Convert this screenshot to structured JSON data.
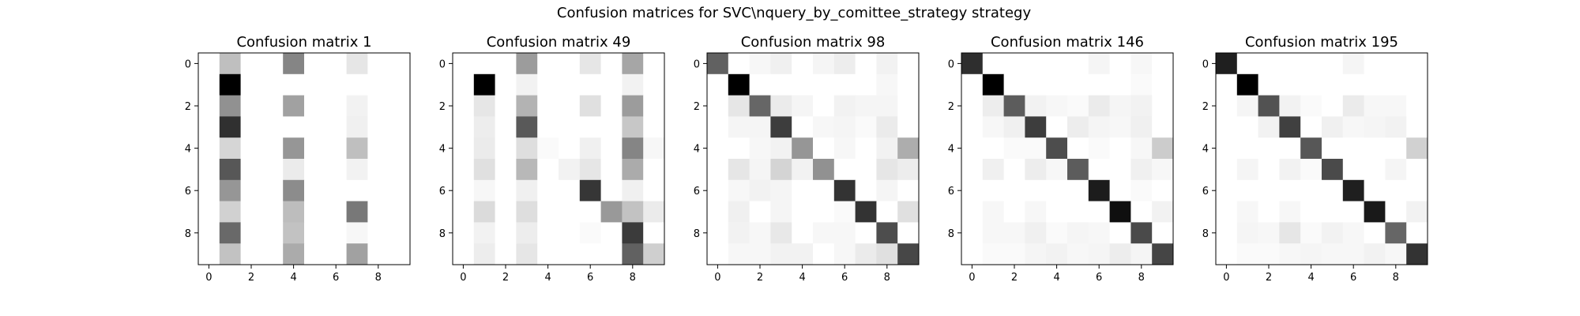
{
  "figure": {
    "suptitle": "Confusion matrices for SVC\\nquery_by_comittee_strategy strategy"
  },
  "colormap": "gray_r",
  "chart_data": [
    {
      "type": "heatmap",
      "title": "Confusion matrix 1",
      "xlabel": "",
      "ylabel": "",
      "xticks": [
        0,
        2,
        4,
        6,
        8
      ],
      "yticks": [
        0,
        2,
        4,
        6,
        8
      ],
      "matrix": [
        [
          0,
          0.25,
          0,
          0,
          0.48,
          0,
          0,
          0.1,
          0,
          0
        ],
        [
          0,
          1.0,
          0,
          0,
          0,
          0,
          0,
          0,
          0,
          0
        ],
        [
          0,
          0.43,
          0,
          0,
          0.37,
          0,
          0,
          0.05,
          0,
          0
        ],
        [
          0,
          0.81,
          0,
          0,
          0,
          0,
          0,
          0.06,
          0,
          0
        ],
        [
          0,
          0.16,
          0,
          0,
          0.41,
          0,
          0,
          0.25,
          0,
          0
        ],
        [
          0,
          0.66,
          0,
          0,
          0.08,
          0,
          0,
          0.05,
          0,
          0
        ],
        [
          0,
          0.41,
          0,
          0,
          0.45,
          0,
          0,
          0,
          0,
          0
        ],
        [
          0,
          0.18,
          0,
          0,
          0.26,
          0,
          0,
          0.53,
          0,
          0
        ],
        [
          0,
          0.59,
          0,
          0,
          0.24,
          0,
          0,
          0.03,
          0,
          0
        ],
        [
          0,
          0.24,
          0,
          0,
          0.33,
          0,
          0,
          0.37,
          0,
          0
        ]
      ]
    },
    {
      "type": "heatmap",
      "title": "Confusion matrix 49",
      "xlabel": "",
      "ylabel": "",
      "xticks": [
        0,
        2,
        4,
        6,
        8
      ],
      "yticks": [
        0,
        2,
        4,
        6,
        8
      ],
      "matrix": [
        [
          0,
          0,
          0,
          0.39,
          0,
          0,
          0.1,
          0,
          0.35,
          0
        ],
        [
          0,
          1.0,
          0,
          0.05,
          0,
          0,
          0,
          0,
          0.05,
          0
        ],
        [
          0,
          0.1,
          0,
          0.3,
          0,
          0,
          0.12,
          0,
          0.39,
          0
        ],
        [
          0,
          0.07,
          0,
          0.65,
          0,
          0,
          0,
          0,
          0.22,
          0
        ],
        [
          0,
          0.08,
          0,
          0.13,
          0.02,
          0,
          0.06,
          0,
          0.48,
          0.03
        ],
        [
          0,
          0.12,
          0,
          0.28,
          0,
          0.05,
          0.1,
          0,
          0.33,
          0
        ],
        [
          0,
          0.03,
          0,
          0.06,
          0,
          0,
          0.79,
          0,
          0.06,
          0
        ],
        [
          0,
          0.14,
          0,
          0.13,
          0,
          0,
          0,
          0.4,
          0.24,
          0.08
        ],
        [
          0,
          0.05,
          0,
          0.07,
          0,
          0,
          0.02,
          0,
          0.77,
          0
        ],
        [
          0,
          0.07,
          0,
          0.1,
          0,
          0,
          0,
          0,
          0.62,
          0.19
        ]
      ]
    },
    {
      "type": "heatmap",
      "title": "Confusion matrix 98",
      "xlabel": "",
      "ylabel": "",
      "xticks": [
        0,
        2,
        4,
        6,
        8
      ],
      "yticks": [
        0,
        2,
        4,
        6,
        8
      ],
      "matrix": [
        [
          0.62,
          0,
          0.03,
          0.06,
          0,
          0.04,
          0.07,
          0,
          0.05,
          0
        ],
        [
          0,
          1.0,
          0,
          0,
          0,
          0,
          0,
          0,
          0.03,
          0
        ],
        [
          0,
          0.1,
          0.6,
          0.08,
          0.04,
          0,
          0.05,
          0.04,
          0.04,
          0
        ],
        [
          0,
          0.04,
          0.04,
          0.76,
          0,
          0.03,
          0.04,
          0.02,
          0.08,
          0
        ],
        [
          0,
          0,
          0.03,
          0.05,
          0.41,
          0,
          0.03,
          0,
          0.05,
          0.32
        ],
        [
          0,
          0.1,
          0.04,
          0.17,
          0.05,
          0.43,
          0,
          0,
          0.1,
          0.07
        ],
        [
          0,
          0.03,
          0.05,
          0.04,
          0,
          0,
          0.8,
          0,
          0.04,
          0
        ],
        [
          0,
          0.06,
          0,
          0.04,
          0,
          0,
          0.02,
          0.8,
          0,
          0.12
        ],
        [
          0,
          0.05,
          0.03,
          0.09,
          0,
          0.03,
          0.03,
          0,
          0.7,
          0
        ],
        [
          0,
          0.03,
          0.03,
          0.05,
          0.05,
          0,
          0.03,
          0.08,
          0.12,
          0.72
        ]
      ]
    },
    {
      "type": "heatmap",
      "title": "Confusion matrix 146",
      "xlabel": "",
      "ylabel": "",
      "xticks": [
        0,
        2,
        4,
        6,
        8
      ],
      "yticks": [
        0,
        2,
        4,
        6,
        8
      ],
      "matrix": [
        [
          0.82,
          0,
          0,
          0,
          0,
          0,
          0.04,
          0,
          0.03,
          0
        ],
        [
          0,
          1.0,
          0,
          0,
          0,
          0,
          0,
          0,
          0.02,
          0
        ],
        [
          0,
          0.07,
          0.64,
          0.05,
          0.03,
          0.02,
          0.08,
          0.04,
          0.05,
          0
        ],
        [
          0,
          0.03,
          0.06,
          0.76,
          0,
          0.07,
          0.04,
          0.03,
          0.06,
          0
        ],
        [
          0,
          0,
          0.02,
          0.02,
          0.7,
          0,
          0.02,
          0,
          0.03,
          0.2
        ],
        [
          0,
          0.06,
          0,
          0.07,
          0.03,
          0.64,
          0,
          0,
          0.06,
          0.03
        ],
        [
          0,
          0,
          0,
          0,
          0,
          0,
          0.89,
          0,
          0.02,
          0
        ],
        [
          0,
          0.03,
          0,
          0.03,
          0,
          0,
          0,
          0.94,
          0,
          0.05
        ],
        [
          0,
          0.03,
          0.03,
          0.06,
          0.02,
          0.04,
          0.03,
          0,
          0.71,
          0
        ],
        [
          0,
          0.02,
          0.02,
          0.04,
          0.05,
          0.03,
          0.04,
          0.07,
          0.04,
          0.73
        ]
      ]
    },
    {
      "type": "heatmap",
      "title": "Confusion matrix 195",
      "xlabel": "",
      "ylabel": "",
      "xticks": [
        0,
        2,
        4,
        6,
        8
      ],
      "yticks": [
        0,
        2,
        4,
        6,
        8
      ],
      "matrix": [
        [
          0.88,
          0,
          0,
          0,
          0,
          0,
          0.04,
          0,
          0,
          0
        ],
        [
          0,
          1.0,
          0,
          0,
          0,
          0,
          0,
          0,
          0,
          0
        ],
        [
          0,
          0.04,
          0.68,
          0.05,
          0.02,
          0,
          0.08,
          0.03,
          0.03,
          0
        ],
        [
          0,
          0,
          0.05,
          0.75,
          0,
          0.06,
          0.03,
          0.04,
          0.05,
          0
        ],
        [
          0,
          0,
          0,
          0,
          0.66,
          0,
          0,
          0,
          0,
          0.18
        ],
        [
          0,
          0.04,
          0,
          0.05,
          0.02,
          0.71,
          0,
          0,
          0.04,
          0
        ],
        [
          0,
          0,
          0,
          0,
          0,
          0,
          0.88,
          0,
          0,
          0
        ],
        [
          0,
          0.03,
          0,
          0.03,
          0,
          0,
          0,
          0.9,
          0,
          0.05
        ],
        [
          0,
          0.04,
          0.03,
          0.1,
          0.02,
          0.05,
          0.03,
          0,
          0.6,
          0
        ],
        [
          0,
          0.02,
          0.02,
          0.03,
          0.04,
          0.03,
          0.03,
          0.05,
          0.03,
          0.8
        ]
      ]
    }
  ]
}
